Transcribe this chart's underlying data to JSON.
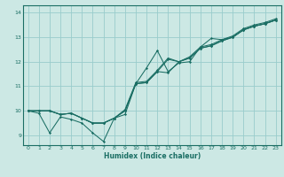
{
  "title": "",
  "xlabel": "Humidex (Indice chaleur)",
  "bg_color": "#cce8e4",
  "line_color": "#1a6e64",
  "grid_color": "#99cccc",
  "xlim": [
    -0.5,
    23.5
  ],
  "ylim": [
    8.6,
    14.3
  ],
  "xticks": [
    0,
    1,
    2,
    3,
    4,
    5,
    6,
    7,
    8,
    9,
    10,
    11,
    12,
    13,
    14,
    15,
    16,
    17,
    18,
    19,
    20,
    21,
    22,
    23
  ],
  "yticks": [
    9,
    10,
    11,
    12,
    13,
    14
  ],
  "series": [
    [
      10.0,
      9.9,
      9.1,
      9.75,
      9.65,
      9.5,
      9.1,
      8.75,
      9.7,
      9.85,
      11.1,
      11.75,
      12.45,
      11.6,
      11.95,
      12.0,
      12.6,
      12.95,
      12.9,
      13.0,
      13.3,
      13.45,
      13.55,
      13.7
    ],
    [
      10.0,
      10.0,
      10.0,
      9.85,
      9.9,
      9.7,
      9.5,
      9.5,
      9.7,
      10.0,
      11.1,
      11.15,
      11.6,
      12.1,
      12.0,
      12.15,
      12.55,
      12.65,
      12.85,
      13.0,
      13.3,
      13.45,
      13.55,
      13.7
    ],
    [
      10.0,
      10.0,
      10.0,
      9.85,
      9.9,
      9.7,
      9.5,
      9.5,
      9.7,
      10.05,
      11.15,
      11.2,
      11.65,
      12.15,
      12.0,
      12.2,
      12.6,
      12.7,
      12.9,
      13.05,
      13.35,
      13.5,
      13.6,
      13.75
    ],
    [
      10.0,
      10.0,
      10.0,
      9.85,
      9.9,
      9.7,
      9.5,
      9.5,
      9.7,
      10.0,
      11.1,
      11.15,
      11.6,
      11.55,
      12.0,
      12.15,
      12.55,
      12.65,
      12.85,
      13.0,
      13.3,
      13.45,
      13.55,
      13.7
    ]
  ]
}
